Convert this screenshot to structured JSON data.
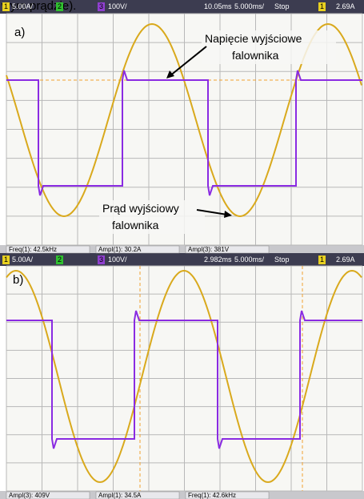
{
  "caption_fragment": "wym prądzie).",
  "panels": [
    {
      "label": "a)",
      "top_bar": {
        "ch1": "1",
        "ch1_scale": "5.00A/",
        "ch2": "2",
        "ch3": "3",
        "ch3_scale": "100V/",
        "delay": "10.05ms",
        "timebase": "5.000ms/",
        "mode": "Stop",
        "trig_ch": "1",
        "trig_level": "2.69A"
      },
      "bottom_bar": [
        "Freq(1): 42.5kHz",
        "Ampl(1): 30.2A",
        "Ampl(3): 381V"
      ],
      "annotations": [
        "Napięcie wyjściowe",
        "falownika",
        "Prąd wyjściowy",
        "falownika"
      ]
    },
    {
      "label": "b)",
      "top_bar": {
        "ch1": "1",
        "ch1_scale": "5.00A/",
        "ch2": "2",
        "ch3": "3",
        "ch3_scale": "100V/",
        "delay": "2.982ms",
        "timebase": "5.000ms/",
        "mode": "Stop",
        "trig_ch": "1",
        "trig_level": "2.69A"
      },
      "bottom_bar": [
        "Ampl(3): 409V",
        "Ampl(1): 34.5A",
        "Freq(1): 42.6kHz"
      ]
    }
  ]
}
